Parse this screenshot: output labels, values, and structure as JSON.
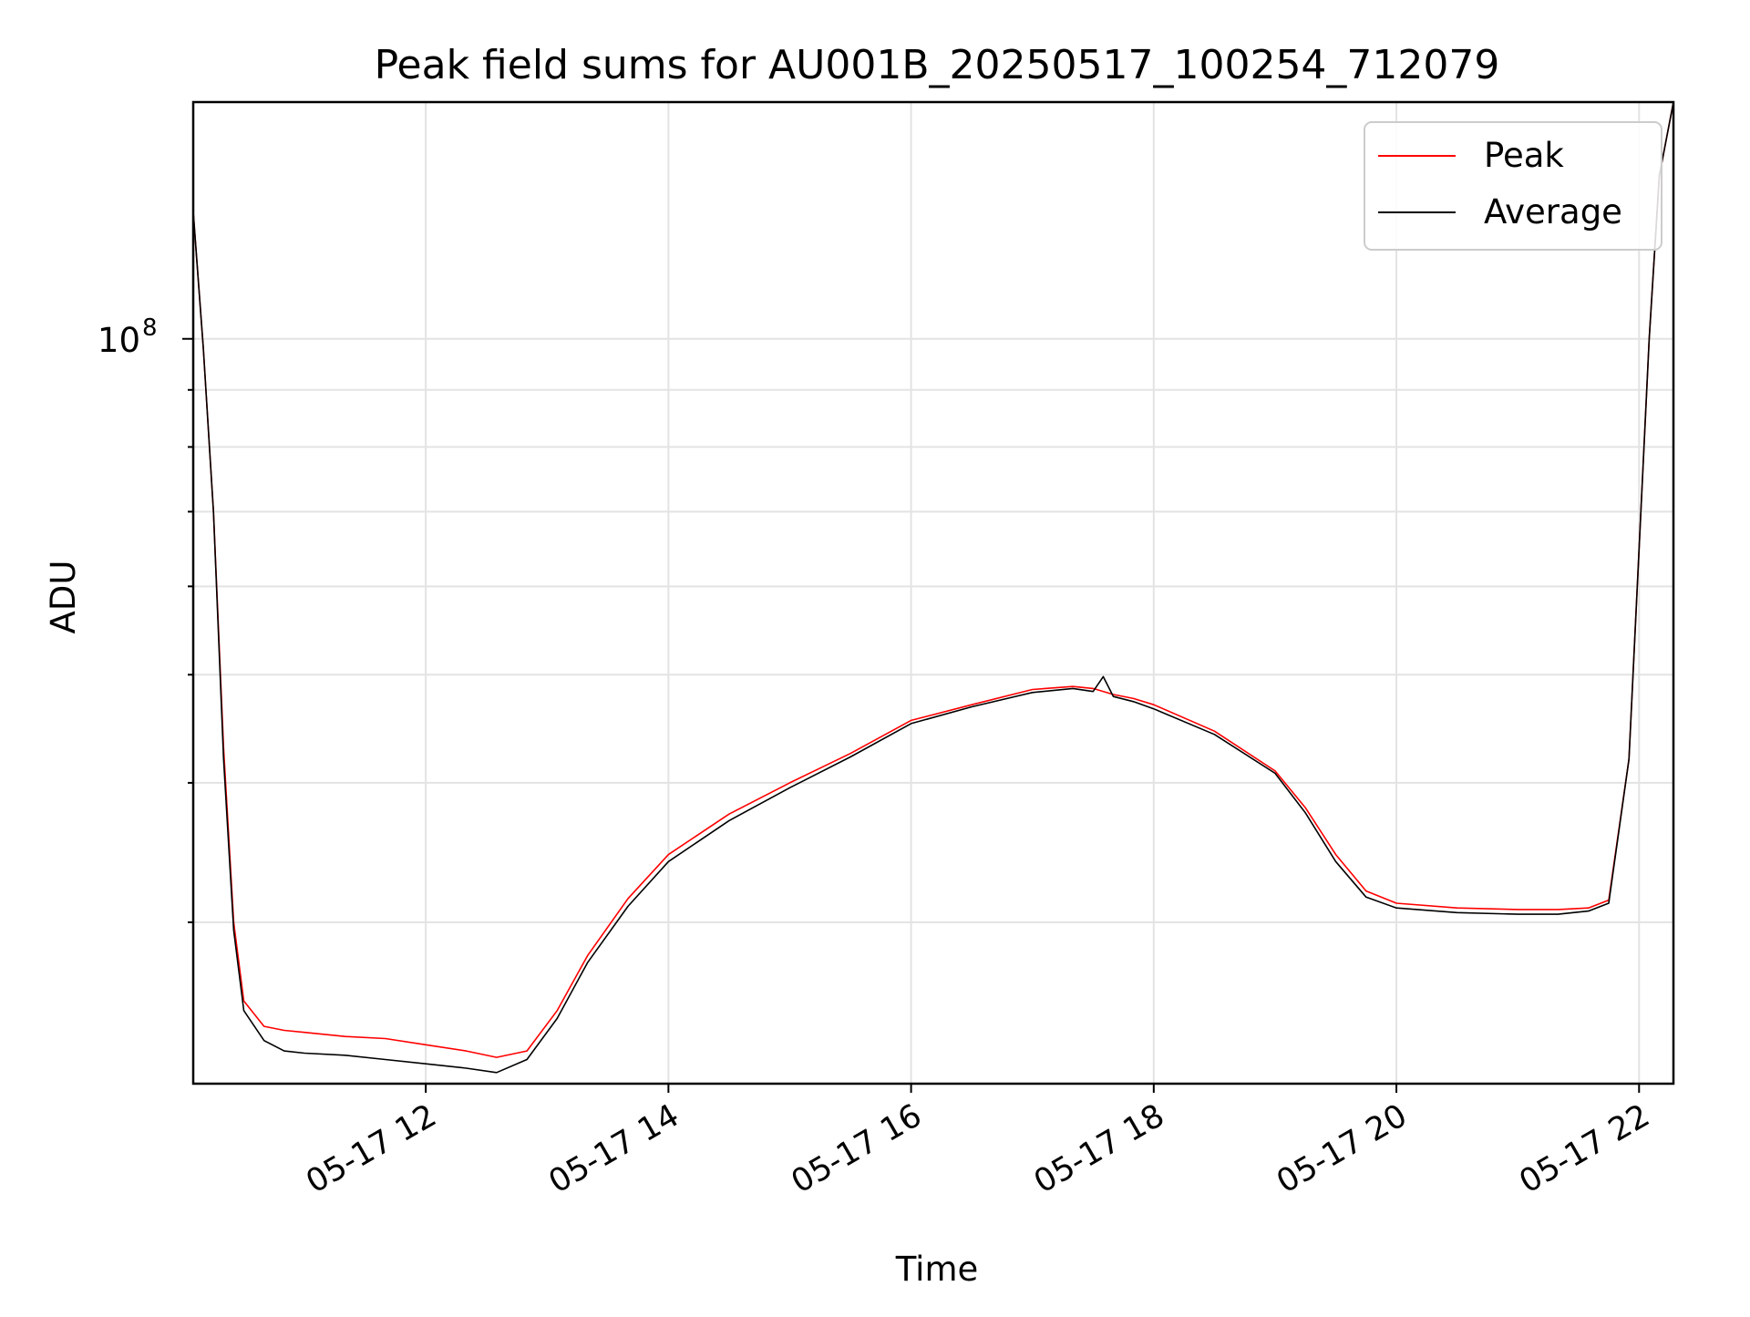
{
  "chart_data": {
    "type": "line",
    "title": "Peak field sums for AU001B_20250517_100254_712079",
    "xlabel": "Time",
    "ylabel": "ADU",
    "yscale": "log",
    "grid": true,
    "legend_position": "upper right",
    "xlim": [
      "2025-05-17T10:05",
      "2025-05-17T22:17"
    ],
    "ylim": [
      21500000,
      163000000
    ],
    "x_ticks": [
      {
        "value": "2025-05-17T12:00",
        "label": "05-17 12"
      },
      {
        "value": "2025-05-17T14:00",
        "label": "05-17 14"
      },
      {
        "value": "2025-05-17T16:00",
        "label": "05-17 16"
      },
      {
        "value": "2025-05-17T18:00",
        "label": "05-17 18"
      },
      {
        "value": "2025-05-17T20:00",
        "label": "05-17 20"
      },
      {
        "value": "2025-05-17T22:00",
        "label": "05-17 22"
      }
    ],
    "y_major_ticks": [
      {
        "value": 100000000,
        "label_base": "10",
        "label_exp": "8"
      }
    ],
    "y_minor_ticks": [
      30000000,
      40000000,
      50000000,
      60000000,
      70000000,
      80000000,
      90000000,
      200000000
    ],
    "series": [
      {
        "name": "Peak",
        "color": "#ff0000",
        "x": [
          "2025-05-17T10:05",
          "2025-05-17T10:10",
          "2025-05-17T10:15",
          "2025-05-17T10:20",
          "2025-05-17T10:25",
          "2025-05-17T10:30",
          "2025-05-17T10:40",
          "2025-05-17T10:50",
          "2025-05-17T11:00",
          "2025-05-17T11:20",
          "2025-05-17T11:40",
          "2025-05-17T12:00",
          "2025-05-17T12:20",
          "2025-05-17T12:35",
          "2025-05-17T12:50",
          "2025-05-17T13:05",
          "2025-05-17T13:20",
          "2025-05-17T13:40",
          "2025-05-17T14:00",
          "2025-05-17T14:30",
          "2025-05-17T15:00",
          "2025-05-17T15:30",
          "2025-05-17T16:00",
          "2025-05-17T16:30",
          "2025-05-17T17:00",
          "2025-05-17T17:20",
          "2025-05-17T17:30",
          "2025-05-17T17:40",
          "2025-05-17T17:50",
          "2025-05-17T18:00",
          "2025-05-17T18:30",
          "2025-05-17T19:00",
          "2025-05-17T19:15",
          "2025-05-17T19:30",
          "2025-05-17T19:45",
          "2025-05-17T20:00",
          "2025-05-17T20:30",
          "2025-05-17T21:00",
          "2025-05-17T21:20",
          "2025-05-17T21:35",
          "2025-05-17T21:45",
          "2025-05-17T21:55",
          "2025-05-17T22:05",
          "2025-05-17T22:10",
          "2025-05-17T22:17"
        ],
        "values": [
          130000000,
          98000000,
          70000000,
          43000000,
          30000000,
          25500000,
          24200000,
          24000000,
          23900000,
          23700000,
          23600000,
          23300000,
          23000000,
          22700000,
          23000000,
          25000000,
          28000000,
          31500000,
          34500000,
          37500000,
          40000000,
          42500000,
          45500000,
          47000000,
          48500000,
          48800000,
          48600000,
          48000000,
          47600000,
          47000000,
          44500000,
          41000000,
          38000000,
          34500000,
          32000000,
          31200000,
          30900000,
          30800000,
          30800000,
          30900000,
          31400000,
          42000000,
          100000000,
          140000000,
          163000000
        ]
      },
      {
        "name": "Average",
        "color": "#000000",
        "x": [
          "2025-05-17T10:05",
          "2025-05-17T10:10",
          "2025-05-17T10:15",
          "2025-05-17T10:20",
          "2025-05-17T10:25",
          "2025-05-17T10:30",
          "2025-05-17T10:40",
          "2025-05-17T10:50",
          "2025-05-17T11:00",
          "2025-05-17T11:20",
          "2025-05-17T11:40",
          "2025-05-17T12:00",
          "2025-05-17T12:20",
          "2025-05-17T12:35",
          "2025-05-17T12:50",
          "2025-05-17T13:05",
          "2025-05-17T13:20",
          "2025-05-17T13:40",
          "2025-05-17T14:00",
          "2025-05-17T14:30",
          "2025-05-17T15:00",
          "2025-05-17T15:30",
          "2025-05-17T16:00",
          "2025-05-17T16:30",
          "2025-05-17T17:00",
          "2025-05-17T17:20",
          "2025-05-17T17:30",
          "2025-05-17T17:35",
          "2025-05-17T17:40",
          "2025-05-17T17:50",
          "2025-05-17T18:00",
          "2025-05-17T18:30",
          "2025-05-17T19:00",
          "2025-05-17T19:15",
          "2025-05-17T19:30",
          "2025-05-17T19:45",
          "2025-05-17T20:00",
          "2025-05-17T20:30",
          "2025-05-17T21:00",
          "2025-05-17T21:20",
          "2025-05-17T21:35",
          "2025-05-17T21:45",
          "2025-05-17T21:55",
          "2025-05-17T22:05",
          "2025-05-17T22:10",
          "2025-05-17T22:17"
        ],
        "values": [
          130000000,
          98000000,
          70000000,
          42000000,
          29500000,
          25000000,
          23500000,
          23000000,
          22900000,
          22800000,
          22600000,
          22400000,
          22200000,
          22000000,
          22600000,
          24600000,
          27600000,
          31000000,
          34000000,
          37000000,
          39600000,
          42200000,
          45200000,
          46800000,
          48200000,
          48600000,
          48300000,
          49800000,
          47800000,
          47300000,
          46600000,
          44200000,
          40800000,
          37600000,
          34000000,
          31600000,
          30900000,
          30600000,
          30500000,
          30500000,
          30700000,
          31200000,
          42000000,
          100000000,
          140000000,
          163000000
        ]
      }
    ]
  }
}
